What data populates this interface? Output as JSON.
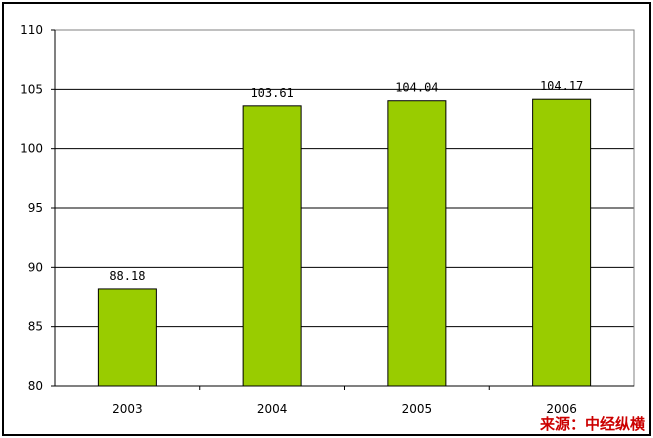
{
  "chart_data": {
    "type": "bar",
    "categories": [
      "2003",
      "2004",
      "2005",
      "2006"
    ],
    "values": [
      88.18,
      103.61,
      104.04,
      104.17
    ],
    "data_labels": [
      "88.18",
      "103.61",
      "104.04",
      "104.17"
    ],
    "title": "",
    "xlabel": "",
    "ylabel": "",
    "ylim": [
      80,
      110
    ],
    "yticks": [
      80,
      85,
      90,
      95,
      100,
      105,
      110
    ],
    "grid": true,
    "bar_color": "#99cc00",
    "bar_edge_color": "#000000"
  },
  "source": {
    "label": "来源：中经纵横",
    "color": "#cc0000"
  }
}
